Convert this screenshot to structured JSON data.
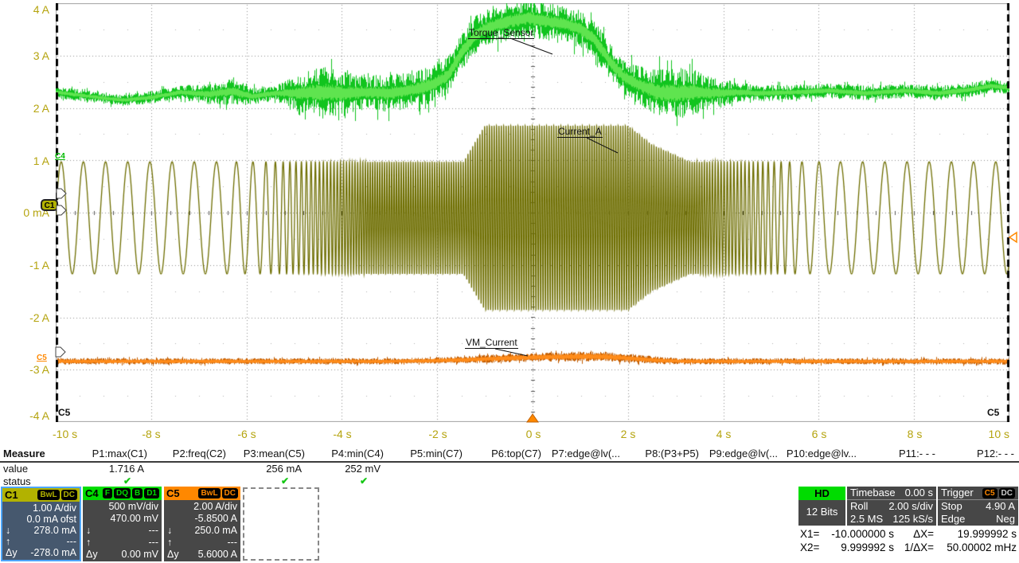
{
  "colors": {
    "c1_channel": "#b2b200",
    "c4_channel": "#00dc00",
    "c5_channel": "#ff8800",
    "axis_label": "#b5a40f",
    "status_ok": "#15c715",
    "hd_badge": "#00dc00",
    "selected_box_border": "#4da6ff",
    "cursor_line": "#000000"
  },
  "graticule": {
    "y_labels": [
      "4 A",
      "3 A",
      "2 A",
      "1 A",
      "0 mA",
      "-1 A",
      "-2 A",
      "-3 A",
      "-4 A"
    ],
    "x_labels": [
      "-10 s",
      "-8 s",
      "-6 s",
      "-4 s",
      "-2 s",
      "0 s",
      "2 s",
      "4 s",
      "6 s",
      "8 s",
      "10 s"
    ],
    "trace_labels": {
      "c4": "Torque_Sensor",
      "c1": "Current_A",
      "c5": "VM_Current"
    },
    "corner_label_left": "C5",
    "corner_label_right": "C5",
    "c1_marker": "C1",
    "c4_marker": "C4",
    "c5_marker": "C5"
  },
  "measure": {
    "title": "Measure",
    "value_label": "value",
    "status_label": "status",
    "columns": [
      {
        "header": "P1:max(C1)",
        "value": "1.716 A",
        "status": "✔"
      },
      {
        "header": "P2:freq(C2)",
        "value": "",
        "status": ""
      },
      {
        "header": "P3:mean(C5)",
        "value": "256 mA",
        "status": "✔"
      },
      {
        "header": "P4:min(C4)",
        "value": "252 mV",
        "status": "✔"
      },
      {
        "header": "P5:min(C7)",
        "value": "",
        "status": ""
      },
      {
        "header": "P6:top(C7)",
        "value": "",
        "status": ""
      },
      {
        "header": "P7:edge@lv(...",
        "value": "",
        "status": ""
      },
      {
        "header": "P8:(P3+P5)",
        "value": "",
        "status": ""
      },
      {
        "header": "P9:edge@lv(...",
        "value": "",
        "status": ""
      },
      {
        "header": "P10:edge@lv...",
        "value": "",
        "status": ""
      },
      {
        "header": "P11:- - -",
        "value": "",
        "status": ""
      },
      {
        "header": "P12:- - -",
        "value": "",
        "status": ""
      }
    ]
  },
  "channels": {
    "c1": {
      "name": "C1",
      "badges": [
        "BwL",
        "DC"
      ],
      "rows": [
        [
          "",
          "1.00 A/div"
        ],
        [
          "",
          "0.0 mA ofst"
        ],
        [
          "↓",
          "278.0 mA"
        ],
        [
          "↑",
          "---"
        ],
        [
          "Δy",
          "-278.0 mA"
        ]
      ]
    },
    "c4": {
      "name": "C4",
      "badges": [
        "F",
        "DQ",
        "B",
        "D1"
      ],
      "rows": [
        [
          "",
          "500 mV/div"
        ],
        [
          "",
          "470.00 mV"
        ],
        [
          "↓",
          "---"
        ],
        [
          "↑",
          "---"
        ],
        [
          "Δy",
          "0.00 mV"
        ]
      ]
    },
    "c5": {
      "name": "C5",
      "badges": [
        "BwL",
        "DC"
      ],
      "rows": [
        [
          "",
          "2.00 A/div"
        ],
        [
          "",
          "-5.8500 A"
        ],
        [
          "↓",
          "250.0 mA"
        ],
        [
          "↑",
          "---"
        ],
        [
          "Δy",
          "5.6000 A"
        ]
      ]
    }
  },
  "acquisition": {
    "hd": "HD",
    "bits": "12 Bits",
    "timebase": {
      "label": "Timebase",
      "value": "0.00 s",
      "mode": "Roll",
      "scale": "2.00 s/div",
      "samples": "2.5 MS",
      "rate": "125 kS/s"
    },
    "trigger": {
      "label": "Trigger",
      "source": "C5",
      "coupling": "DC",
      "mode": "Stop",
      "level": "4.90 A",
      "type": "Edge",
      "slope": "Neg"
    }
  },
  "cursors": {
    "x1_label": "X1=",
    "x1": "-10.000000 s",
    "dx_label": "ΔX=",
    "dx": "19.999992 s",
    "x2_label": "X2=",
    "x2": "9.999992 s",
    "inv_label": "1/ΔX=",
    "inv": "50.00002 mHz"
  },
  "chart_data": {
    "type": "line",
    "x_axis": {
      "unit": "s",
      "range": [
        -10,
        10
      ],
      "divisions": 10,
      "grid": "dotted"
    },
    "y_axis": {
      "unit": "A",
      "range": [
        -4,
        4
      ],
      "divisions": 8,
      "grid": "dotted"
    },
    "trigger_time_s": 0,
    "trigger_level_div_y": 298,
    "series": [
      {
        "name": "Current_A",
        "channel": "C1",
        "color": "#6e6e00",
        "kind": "chirp_sine",
        "offset": -0.1,
        "amplitude_env": [
          [
            -10,
            1.07
          ],
          [
            -2.1,
            1.07
          ],
          [
            -1.45,
            1.07
          ],
          [
            -1.0,
            1.76
          ],
          [
            2.0,
            1.76
          ],
          [
            2.5,
            1.4
          ],
          [
            3.3,
            1.07
          ],
          [
            10,
            1.07
          ]
        ],
        "freq_env": [
          [
            -10,
            2.15
          ],
          [
            -6.6,
            2.15
          ],
          [
            -5.8,
            3.2
          ],
          [
            -5.0,
            8
          ],
          [
            -4.2,
            14
          ],
          [
            -3.4,
            20
          ],
          [
            3.4,
            20
          ],
          [
            4.2,
            14
          ],
          [
            5.0,
            8
          ],
          [
            5.6,
            3.2
          ],
          [
            6.2,
            2.15
          ],
          [
            10,
            2.15
          ]
        ]
      },
      {
        "name": "Torque_Sensor",
        "channel": "C4",
        "kind": "noise_band",
        "color": "#11c41e",
        "core_color": "#5fe44f",
        "core_frac": 0.32,
        "envelope": [
          [
            -10,
            2.3,
            0.1
          ],
          [
            -9.3,
            2.22,
            0.09
          ],
          [
            -8.6,
            2.15,
            0.09
          ],
          [
            -8.0,
            2.2,
            0.1
          ],
          [
            -7.4,
            2.3,
            0.11
          ],
          [
            -6.8,
            2.26,
            0.16
          ],
          [
            -6.3,
            2.32,
            0.22
          ],
          [
            -5.9,
            2.22,
            0.14
          ],
          [
            -5.4,
            2.28,
            0.12
          ],
          [
            -4.9,
            2.28,
            0.3
          ],
          [
            -4.4,
            2.3,
            0.42
          ],
          [
            -4.0,
            2.28,
            0.35
          ],
          [
            -3.5,
            2.3,
            0.28
          ],
          [
            -3.0,
            2.28,
            0.3
          ],
          [
            -2.5,
            2.35,
            0.28
          ],
          [
            -2.1,
            2.45,
            0.3
          ],
          [
            -1.8,
            2.6,
            0.3
          ],
          [
            -1.5,
            3.05,
            0.32
          ],
          [
            -1.2,
            3.4,
            0.3
          ],
          [
            -0.9,
            3.55,
            0.3
          ],
          [
            -0.5,
            3.65,
            0.3
          ],
          [
            -0.1,
            3.72,
            0.32
          ],
          [
            0.3,
            3.65,
            0.3
          ],
          [
            0.7,
            3.6,
            0.28
          ],
          [
            1.0,
            3.5,
            0.3
          ],
          [
            1.3,
            3.3,
            0.3
          ],
          [
            1.6,
            2.9,
            0.3
          ],
          [
            1.9,
            2.6,
            0.28
          ],
          [
            2.2,
            2.45,
            0.3
          ],
          [
            2.6,
            2.3,
            0.38
          ],
          [
            3.0,
            2.28,
            0.42
          ],
          [
            3.4,
            2.3,
            0.35
          ],
          [
            3.8,
            2.28,
            0.25
          ],
          [
            4.3,
            2.3,
            0.16
          ],
          [
            4.8,
            2.28,
            0.13
          ],
          [
            5.5,
            2.3,
            0.12
          ],
          [
            6.2,
            2.33,
            0.12
          ],
          [
            7.0,
            2.28,
            0.12
          ],
          [
            7.8,
            2.33,
            0.11
          ],
          [
            8.5,
            2.28,
            0.12
          ],
          [
            9.2,
            2.35,
            0.12
          ],
          [
            9.6,
            2.42,
            0.11
          ],
          [
            10,
            2.38,
            0.1
          ]
        ]
      },
      {
        "name": "VM_Current",
        "channel": "C5",
        "kind": "noise_band",
        "color": "#c25c00",
        "core_color": "#ff8c1a",
        "core_frac": 0.55,
        "envelope": [
          [
            -10,
            -2.84,
            0.05
          ],
          [
            -6,
            -2.84,
            0.05
          ],
          [
            -3,
            -2.84,
            0.05
          ],
          [
            -2.2,
            -2.83,
            0.05
          ],
          [
            -1.4,
            -2.81,
            0.06
          ],
          [
            -0.6,
            -2.78,
            0.07
          ],
          [
            0.2,
            -2.76,
            0.07
          ],
          [
            0.9,
            -2.75,
            0.08
          ],
          [
            1.5,
            -2.75,
            0.08
          ],
          [
            2.0,
            -2.78,
            0.07
          ],
          [
            2.6,
            -2.82,
            0.06
          ],
          [
            3.2,
            -2.84,
            0.05
          ],
          [
            10,
            -2.84,
            0.05
          ]
        ]
      }
    ]
  }
}
